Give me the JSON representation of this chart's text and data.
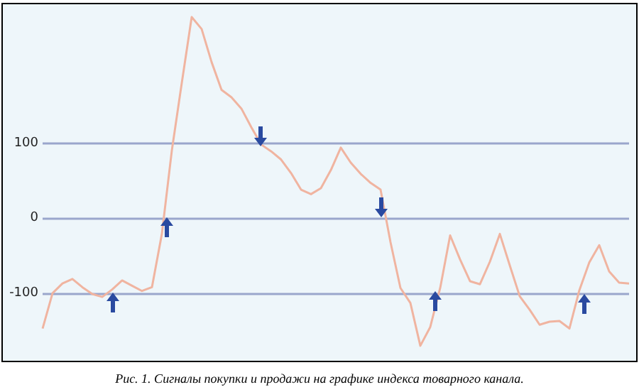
{
  "chart_data": {
    "type": "line",
    "categories": [
      null,
      null,
      null,
      null,
      null,
      null,
      null,
      null,
      null,
      null,
      null,
      null,
      null,
      null,
      null,
      null,
      null,
      null,
      null,
      null,
      null,
      null,
      null,
      null,
      null,
      null,
      null,
      null,
      null,
      null,
      null,
      null,
      null,
      null,
      null,
      null,
      null,
      null,
      null,
      null,
      null,
      null,
      null,
      null,
      null,
      null,
      null,
      null,
      null,
      null,
      null,
      null,
      null,
      null,
      null,
      null,
      null,
      null,
      null,
      null
    ],
    "series": [
      {
        "color": "#f0b4a0",
        "values": [
          -147,
          -100,
          -87,
          -81,
          -92,
          -101,
          -105,
          -95,
          -83,
          -90,
          -97,
          -92,
          -21,
          90,
          180,
          268,
          252,
          208,
          171,
          161,
          146,
          121,
          98,
          89,
          78,
          60,
          38,
          32,
          40,
          64,
          94,
          74,
          59,
          47,
          38,
          -32,
          -93,
          -113,
          -170,
          -145,
          -93,
          -23,
          -55,
          -84,
          -88,
          -58,
          -21,
          -63,
          -104,
          -122,
          -142,
          -138,
          -137,
          -147,
          -96,
          -59,
          -36,
          -71,
          -86,
          -87
        ]
      }
    ],
    "ylim": [
      -190,
      285
    ],
    "yticks": [
      -100,
      0,
      100
    ],
    "grid": "y",
    "tick_labels": "y",
    "marker": "none",
    "line_style": "solid",
    "annotations": [
      "Рис. 1. Сигналы покупки и продажи на графике индекса товарного канала."
    ]
  }
}
